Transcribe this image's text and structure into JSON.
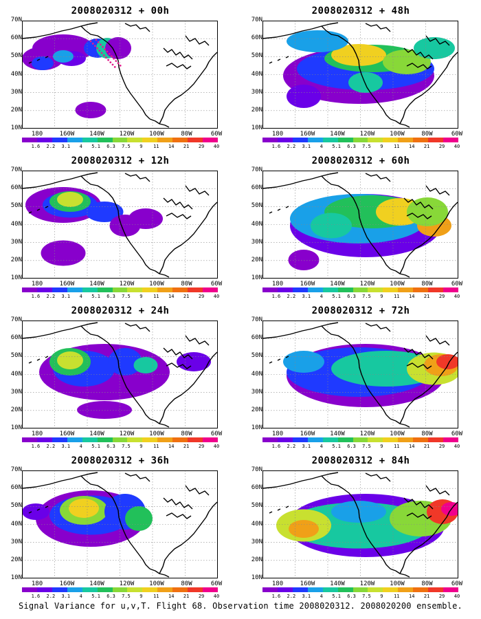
{
  "caption": "Signal Variance for u,v,T. Flight 68. Observation time 2008020312. 2008020200 ensemble.",
  "lat_labels": [
    "70N",
    "60N",
    "50N",
    "40N",
    "30N",
    "20N",
    "10N"
  ],
  "lon_labels": [
    "180",
    "160W",
    "140W",
    "120W",
    "100W",
    "80W",
    "60W"
  ],
  "colorbar": {
    "colors": [
      "#8800cc",
      "#6a00e8",
      "#1f3aff",
      "#19a0e8",
      "#17c8a0",
      "#22c05a",
      "#88d838",
      "#c8e030",
      "#f0d020",
      "#f0a018",
      "#f07010",
      "#f03828",
      "#f0008c"
    ],
    "labels": [
      "1.6",
      "2.2",
      "3.1",
      "4",
      "5.1",
      "6.3",
      "7.5",
      "9",
      "11",
      "14",
      "21",
      "29",
      "40"
    ]
  },
  "panels": [
    {
      "title": "2008020312 + 00h",
      "col": 0,
      "row": 0
    },
    {
      "title": "2008020312 + 48h",
      "col": 1,
      "row": 0
    },
    {
      "title": "2008020312 + 12h",
      "col": 0,
      "row": 1
    },
    {
      "title": "2008020312 + 60h",
      "col": 1,
      "row": 1
    },
    {
      "title": "2008020312 + 24h",
      "col": 0,
      "row": 2
    },
    {
      "title": "2008020312 + 72h",
      "col": 1,
      "row": 2
    },
    {
      "title": "2008020312 + 36h",
      "col": 0,
      "row": 3
    },
    {
      "title": "2008020312 + 84h",
      "col": 1,
      "row": 3
    }
  ]
}
